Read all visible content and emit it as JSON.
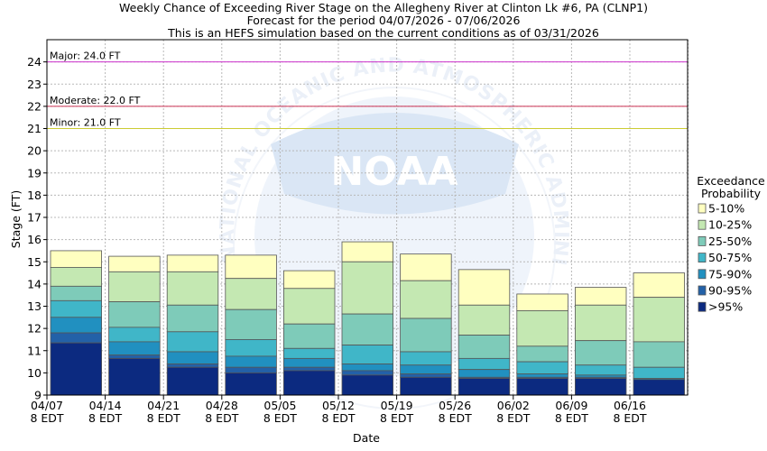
{
  "chart_data": {
    "type": "bar",
    "title_lines": [
      "Weekly Chance of Exceeding River Stage on the Allegheny River at Clinton Lk #6, PA (CLNP1)",
      "Forecast for the period 04/07/2026 - 07/06/2026",
      "This is an HEFS simulation based on the current conditions as of 03/31/2026"
    ],
    "xlabel": "Date",
    "ylabel": "Stage (FT)",
    "ylim": [
      9,
      25
    ],
    "yticks": [
      9,
      10,
      11,
      12,
      13,
      14,
      15,
      16,
      17,
      18,
      19,
      20,
      21,
      22,
      23,
      24
    ],
    "x_tick_labels": [
      {
        "date": "04/07",
        "time": "8 EDT"
      },
      {
        "date": "04/14",
        "time": "8 EDT"
      },
      {
        "date": "04/21",
        "time": "8 EDT"
      },
      {
        "date": "04/28",
        "time": "8 EDT"
      },
      {
        "date": "05/05",
        "time": "8 EDT"
      },
      {
        "date": "05/12",
        "time": "8 EDT"
      },
      {
        "date": "05/19",
        "time": "8 EDT"
      },
      {
        "date": "05/26",
        "time": "8 EDT"
      },
      {
        "date": "06/02",
        "time": "8 EDT"
      },
      {
        "date": "06/09",
        "time": "8 EDT"
      },
      {
        "date": "06/16",
        "time": "8 EDT"
      }
    ],
    "flood_levels": [
      {
        "label": "Major: 24.0 FT",
        "value": 24.0,
        "color": "#cc33cc"
      },
      {
        "label": "Moderate: 22.0 FT",
        "value": 22.0,
        "color": "#cc3355"
      },
      {
        "label": "Minor: 21.0 FT",
        "value": 21.0,
        "color": "#cccc33"
      }
    ],
    "legend_title": [
      "Exceedance",
      "Probability"
    ],
    "legend_position": "right",
    "series": [
      {
        "name": "5-10%",
        "color": "#ffffc0"
      },
      {
        "name": "10-25%",
        "color": "#c4e8b2"
      },
      {
        "name": "25-50%",
        "color": "#7ecbb9"
      },
      {
        "name": "50-75%",
        "color": "#40b6c8"
      },
      {
        "name": "75-90%",
        "color": "#2190c0"
      },
      {
        "name": "90-95%",
        "color": "#2361a8"
      },
      {
        "name": ">95%",
        "color": "#0c2a80"
      }
    ],
    "weeks": [
      {
        "boundaries": [
          15.5,
          14.75,
          13.9,
          13.25,
          12.5,
          11.8,
          11.35,
          9.0
        ]
      },
      {
        "boundaries": [
          15.25,
          14.55,
          13.2,
          12.05,
          11.4,
          10.8,
          10.65,
          9.0
        ]
      },
      {
        "boundaries": [
          15.3,
          14.55,
          13.05,
          11.85,
          10.95,
          10.4,
          10.25,
          9.0
        ]
      },
      {
        "boundaries": [
          15.3,
          14.25,
          12.85,
          11.5,
          10.75,
          10.25,
          10.0,
          9.0
        ]
      },
      {
        "boundaries": [
          14.6,
          13.8,
          12.2,
          11.1,
          10.65,
          10.25,
          10.1,
          9.0
        ]
      },
      {
        "boundaries": [
          15.9,
          15.0,
          12.65,
          11.25,
          10.4,
          10.1,
          9.9,
          9.0
        ]
      },
      {
        "boundaries": [
          15.35,
          14.15,
          12.45,
          10.95,
          10.35,
          9.95,
          9.8,
          9.0
        ]
      },
      {
        "boundaries": [
          14.65,
          13.05,
          11.7,
          10.65,
          10.15,
          9.8,
          9.75,
          9.0
        ]
      },
      {
        "boundaries": [
          13.55,
          12.8,
          11.2,
          10.5,
          9.95,
          9.8,
          9.75,
          9.0
        ]
      },
      {
        "boundaries": [
          13.85,
          13.05,
          11.45,
          10.35,
          9.9,
          9.8,
          9.75,
          9.0
        ]
      },
      {
        "boundaries": [
          14.5,
          13.4,
          11.4,
          10.25,
          9.75,
          9.7,
          9.7,
          9.0
        ]
      }
    ]
  },
  "watermark": {
    "arc_text": "NATIONAL OCEANIC AND ATMOSPHERIC ADMINISTRATION",
    "logo_text": "NOAA"
  }
}
